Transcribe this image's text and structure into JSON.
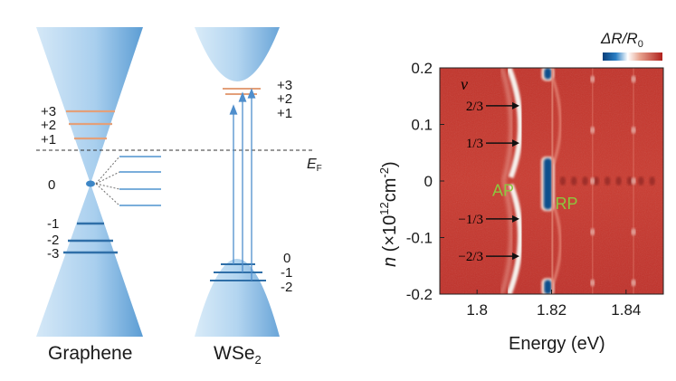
{
  "left_panel": {
    "graphene_label": "Graphene",
    "wse2_label_main": "WSe",
    "wse2_label_sub": "2",
    "fermi_label_main": "E",
    "fermi_label_sub": "F",
    "graphene_levels": {
      "upper": [
        "+3",
        "+2",
        "+1"
      ],
      "zero": "0",
      "lower": [
        "-1",
        "-2",
        "-3"
      ]
    },
    "wse2_levels": {
      "conduction": [
        "+3",
        "+2",
        "+1"
      ],
      "valence": [
        "0",
        "-1",
        "-2"
      ]
    },
    "colors": {
      "cone": "#a9cfee",
      "cone_edge": "#4f93cf",
      "level_orange": "#e3a07a",
      "level_blue": "#2f6fa8",
      "fermi_line": "#333333"
    }
  },
  "chart_data": {
    "type": "heatmap",
    "xlabel": "Energy (eV)",
    "ylabel_main": "n",
    "ylabel_units": "(×10",
    "ylabel_exp": "12",
    "ylabel_unit2": "cm",
    "ylabel_exp2": "-2",
    "ylabel_close": ")",
    "xlim": [
      1.79,
      1.85
    ],
    "ylim": [
      -0.2,
      0.2
    ],
    "x_ticks": [
      1.8,
      1.82,
      1.84
    ],
    "x_tick_labels": [
      "1.8",
      "1.82",
      "1.84"
    ],
    "y_ticks": [
      0.2,
      0.1,
      0,
      -0.1,
      -0.2
    ],
    "y_tick_labels": [
      "0.2",
      "0.1",
      "0",
      "-0.1",
      "-0.2"
    ],
    "colorbar_label": "ΔR/R",
    "colorbar_sub": "0",
    "nu_label": "ν",
    "filling_markers": [
      {
        "label": "2/3",
        "n": 0.133
      },
      {
        "label": "1/3",
        "n": 0.067
      },
      {
        "label": "−1/3",
        "n": -0.067
      },
      {
        "label": "−2/3",
        "n": -0.133
      }
    ],
    "annotations": [
      {
        "text": "AP",
        "energy": 1.807,
        "n": -0.017
      },
      {
        "text": "RP",
        "energy": 1.824,
        "n": -0.04
      }
    ],
    "features": {
      "ap_energy": 1.811,
      "rp_energy": 1.819,
      "secondary_energies": [
        1.831,
        1.842
      ]
    },
    "colors": {
      "background": "#c8372c",
      "dip": "#0d4f8c",
      "peak": "#f6f1ec"
    }
  }
}
